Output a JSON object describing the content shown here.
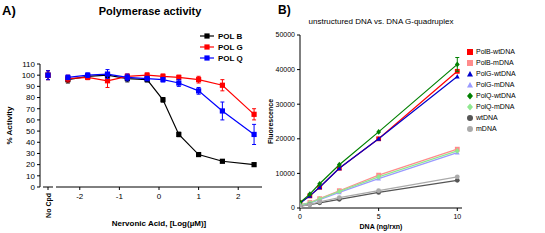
{
  "chart_data": [
    {
      "type": "line",
      "panel_label": "A)",
      "title": "Polymerase activity",
      "x_label": "Nervonic Acid, [Log(µM)]",
      "y_label": "% Activity",
      "control_label": "No Cpd",
      "x": [
        -2.3,
        -1.8,
        -1.3,
        -0.8,
        -0.3,
        0.1,
        0.5,
        1.0,
        1.6,
        2.4
      ],
      "xlim": [
        -2.6,
        2.6
      ],
      "xticks": [
        -2,
        -1,
        0,
        1,
        2
      ],
      "ylim": [
        0,
        110
      ],
      "yticks": [
        0,
        10,
        20,
        30,
        40,
        50,
        60,
        70,
        80,
        90,
        100,
        110
      ],
      "legend": "top-right",
      "series": [
        {
          "name": "POL B",
          "color": "#000000",
          "marker": "square",
          "control_value": 100,
          "control_error": 4,
          "values": [
            96,
            99,
            100,
            97,
            96,
            78,
            47,
            29,
            23,
            20
          ],
          "errors": [
            3,
            2,
            2,
            3,
            2,
            2,
            2,
            1,
            1,
            1
          ]
        },
        {
          "name": "POL G",
          "color": "#ff0000",
          "marker": "square",
          "control_value": 100,
          "control_error": 4,
          "values": [
            97,
            98,
            95,
            99,
            100,
            99,
            98,
            96,
            91,
            65
          ],
          "errors": [
            3,
            2,
            6,
            2,
            2,
            2,
            2,
            3,
            5,
            5
          ]
        },
        {
          "name": "POL Q",
          "color": "#0000ff",
          "marker": "square",
          "control_value": 100,
          "control_error": 4,
          "values": [
            98,
            100,
            101,
            98,
            97,
            96,
            93,
            86,
            68,
            47
          ],
          "errors": [
            2,
            2,
            4,
            3,
            2,
            2,
            3,
            3,
            8,
            9
          ]
        }
      ]
    },
    {
      "type": "line",
      "panel_label": "B)",
      "title": "unstructured DNA vs. DNA G-quadruplex",
      "x_label": "DNA (ng/rxn)",
      "y_label": "Fluorescence",
      "x": [
        0,
        0.625,
        1.25,
        2.5,
        5,
        10
      ],
      "xlim": [
        0,
        10.3
      ],
      "xticks": [
        0,
        5,
        10
      ],
      "ylim": [
        0,
        50000
      ],
      "yticks": [
        0,
        10000,
        20000,
        30000,
        40000,
        50000
      ],
      "legend": "right",
      "series": [
        {
          "name": "PolB-wtDNA",
          "color": "#ff0000",
          "marker": "square",
          "values": [
            1500,
            3500,
            6000,
            11500,
            20000,
            39500
          ]
        },
        {
          "name": "PolB-mDNA",
          "color": "#ff8c8c",
          "marker": "square",
          "values": [
            900,
            1600,
            2700,
            5000,
            9500,
            17000
          ]
        },
        {
          "name": "PolG-wtDNA",
          "color": "#0000cc",
          "marker": "triangle",
          "values": [
            1400,
            3500,
            6000,
            11500,
            20000,
            38000
          ]
        },
        {
          "name": "PolG-mDNA",
          "color": "#9a9aff",
          "marker": "triangle",
          "values": [
            800,
            1400,
            2400,
            4500,
            8500,
            16000
          ]
        },
        {
          "name": "PolQ-wtDNA",
          "color": "#008000",
          "marker": "diamond",
          "values": [
            1600,
            4000,
            7000,
            12500,
            22000,
            41500
          ],
          "errors": [
            0,
            0,
            0,
            0,
            0,
            2000
          ]
        },
        {
          "name": "PolQ-mDNA",
          "color": "#90e890",
          "marker": "diamond",
          "values": [
            900,
            1500,
            2600,
            4800,
            9000,
            16500
          ]
        },
        {
          "name": "wtDNA",
          "color": "#555555",
          "marker": "circle",
          "values": [
            500,
            1000,
            1500,
            2500,
            4500,
            8000
          ]
        },
        {
          "name": "mDNA",
          "color": "#aaaaaa",
          "marker": "circle",
          "values": [
            500,
            1000,
            1800,
            3000,
            5000,
            9000
          ]
        }
      ]
    }
  ]
}
